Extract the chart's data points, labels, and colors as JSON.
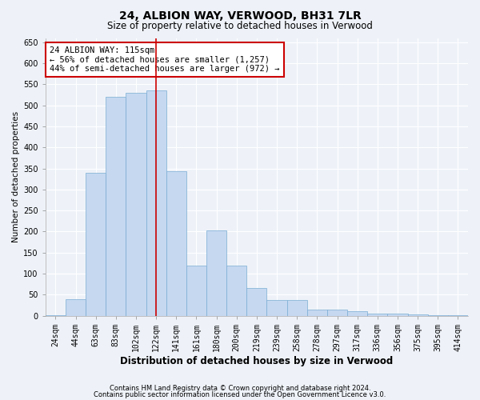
{
  "title1": "24, ALBION WAY, VERWOOD, BH31 7LR",
  "title2": "Size of property relative to detached houses in Verwood",
  "xlabel": "Distribution of detached houses by size in Verwood",
  "ylabel": "Number of detached properties",
  "categories": [
    "24sqm",
    "44sqm",
    "63sqm",
    "83sqm",
    "102sqm",
    "122sqm",
    "141sqm",
    "161sqm",
    "180sqm",
    "200sqm",
    "219sqm",
    "239sqm",
    "258sqm",
    "278sqm",
    "297sqm",
    "317sqm",
    "336sqm",
    "356sqm",
    "375sqm",
    "395sqm",
    "414sqm"
  ],
  "values": [
    2,
    40,
    340,
    520,
    530,
    535,
    343,
    120,
    203,
    120,
    65,
    37,
    37,
    15,
    15,
    10,
    5,
    5,
    3,
    2,
    2
  ],
  "bar_color": "#c5d8f0",
  "bar_edge_color": "#7aadd4",
  "vline_x": 5.0,
  "vline_color": "#cc0000",
  "annotation_text": "24 ALBION WAY: 115sqm\n← 56% of detached houses are smaller (1,257)\n44% of semi-detached houses are larger (972) →",
  "annotation_box_color": "#ffffff",
  "annotation_box_edge": "#cc0000",
  "ylim": [
    0,
    660
  ],
  "yticks": [
    0,
    50,
    100,
    150,
    200,
    250,
    300,
    350,
    400,
    450,
    500,
    550,
    600,
    650
  ],
  "footer1": "Contains HM Land Registry data © Crown copyright and database right 2024.",
  "footer2": "Contains public sector information licensed under the Open Government Licence v3.0.",
  "bg_color": "#eef2f8",
  "plot_bg_color": "#eef2f8",
  "grid_color": "#ffffff",
  "title1_fontsize": 10,
  "title2_fontsize": 8.5,
  "ylabel_fontsize": 7.5,
  "xlabel_fontsize": 8.5,
  "tick_fontsize": 7,
  "footer_fontsize": 6.0,
  "annot_fontsize": 7.5
}
